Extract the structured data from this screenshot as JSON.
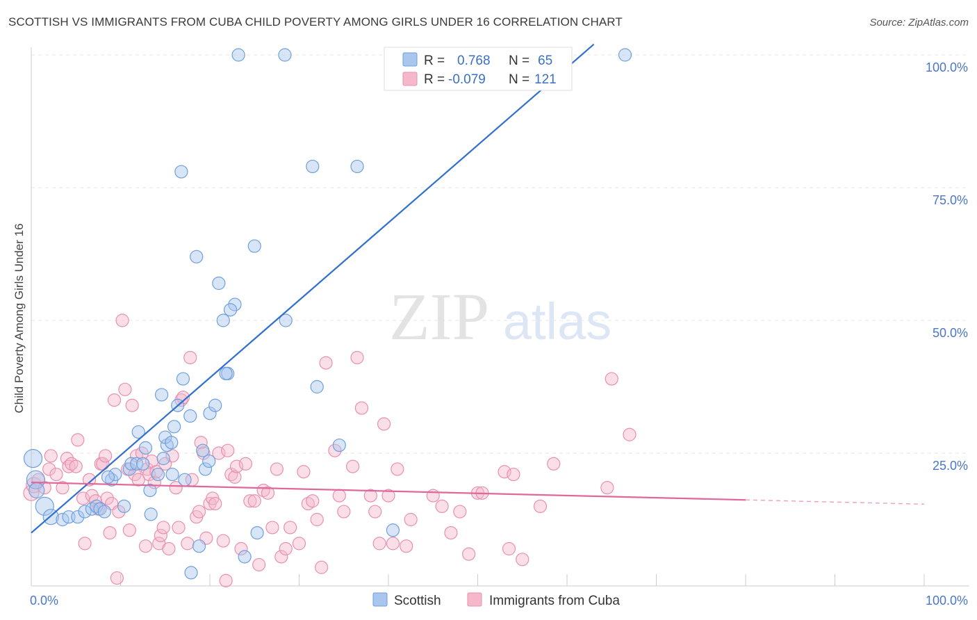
{
  "header": {
    "title": "SCOTTISH VS IMMIGRANTS FROM CUBA CHILD POVERTY AMONG GIRLS UNDER 16 CORRELATION CHART",
    "source": "Source: ZipAtlas.com"
  },
  "watermark": {
    "zip": "ZIP",
    "atlas": "atlas"
  },
  "colors": {
    "scottish_fill": "#a9c6ee",
    "scottish_stroke": "#6f9fdc",
    "scottish_line": "#2f6fcf",
    "cuba_fill": "#f5b8cb",
    "cuba_stroke": "#ea8fae",
    "cuba_line": "#e0679a",
    "tick_text": "#4a76c9"
  },
  "chart_data": {
    "type": "scatter",
    "title": "SCOTTISH VS IMMIGRANTS FROM CUBA CHILD POVERTY AMONG GIRLS UNDER 16 CORRELATION CHART",
    "xlabel": "",
    "ylabel": "Child Poverty Among Girls Under 16",
    "xlim": [
      0,
      100
    ],
    "ylim": [
      0,
      100
    ],
    "x_tick_labels": [
      "0.0%",
      "100.0%"
    ],
    "y_ticks": [
      {
        "value": 25,
        "label": "25.0%"
      },
      {
        "value": 50,
        "label": "50.0%"
      },
      {
        "value": 75,
        "label": "75.0%"
      },
      {
        "value": 100,
        "label": "100.0%"
      }
    ],
    "grid": true,
    "legend_position": "top-center",
    "legend": [
      {
        "r_label": "R =",
        "r_value": "0.768",
        "n_label": "N =",
        "n_value": "65"
      },
      {
        "r_label": "R =",
        "r_value": "-0.079",
        "n_label": "N =",
        "n_value": "121"
      }
    ],
    "series": [
      {
        "name": "Scottish",
        "trend": {
          "x0": 0,
          "y0": 10,
          "x1": 63,
          "y1": 102
        },
        "points": [
          [
            0.2,
            24,
            13
          ],
          [
            0.5,
            20,
            13
          ],
          [
            0.6,
            18,
            11
          ],
          [
            1.5,
            15,
            13
          ],
          [
            2.2,
            13,
            11
          ],
          [
            3.5,
            12.5,
            9
          ],
          [
            4.2,
            13,
            9
          ],
          [
            5.2,
            13,
            9
          ],
          [
            6.0,
            14,
            9
          ],
          [
            6.8,
            14.5,
            9
          ],
          [
            7.3,
            15,
            9
          ],
          [
            7.7,
            14.5,
            9
          ],
          [
            8.2,
            14,
            9
          ],
          [
            9.0,
            20,
            9
          ],
          [
            9.4,
            21,
            9
          ],
          [
            8.6,
            20.5,
            9
          ],
          [
            10.4,
            15,
            9
          ],
          [
            11.0,
            22,
            9
          ],
          [
            11.2,
            23,
            9
          ],
          [
            11.8,
            23,
            9
          ],
          [
            12.0,
            29,
            9
          ],
          [
            12.5,
            23,
            9
          ],
          [
            12.8,
            26,
            9
          ],
          [
            13.3,
            18,
            9
          ],
          [
            13.4,
            13.5,
            9
          ],
          [
            14.2,
            21,
            9
          ],
          [
            14.8,
            24,
            9
          ],
          [
            15.2,
            26.5,
            9
          ],
          [
            14.6,
            36,
            9
          ],
          [
            16.0,
            30,
            9
          ],
          [
            15.0,
            28,
            9
          ],
          [
            15.7,
            27,
            9
          ],
          [
            17.0,
            39,
            9
          ],
          [
            16.4,
            34,
            9
          ],
          [
            17.8,
            32,
            9
          ],
          [
            16.8,
            78,
            9
          ],
          [
            18.5,
            62,
            9
          ],
          [
            19.5,
            22,
            9
          ],
          [
            19.9,
            23.5,
            9
          ],
          [
            20.0,
            32.5,
            9
          ],
          [
            21.0,
            57,
            9
          ],
          [
            21.5,
            50,
            9
          ],
          [
            22.8,
            53,
            9
          ],
          [
            22.3,
            52,
            9
          ],
          [
            23.2,
            100,
            9
          ],
          [
            22.0,
            40,
            9
          ],
          [
            25.0,
            64,
            9
          ],
          [
            25.3,
            10,
            9
          ],
          [
            28.5,
            50,
            9
          ],
          [
            28.4,
            100,
            9
          ],
          [
            31.5,
            79,
            9
          ],
          [
            32.0,
            37.5,
            9
          ],
          [
            34.5,
            26.5,
            9
          ],
          [
            36.5,
            79,
            9
          ],
          [
            40.5,
            10.5,
            9
          ],
          [
            42.0,
            100,
            9
          ],
          [
            66.5,
            100,
            9
          ],
          [
            15.8,
            21,
            9
          ],
          [
            17.2,
            20,
            9
          ],
          [
            19.2,
            25.5,
            9
          ],
          [
            18.8,
            7.5,
            9
          ],
          [
            17.9,
            2.5,
            9
          ],
          [
            21.8,
            40,
            9
          ],
          [
            23.9,
            5.5,
            9
          ],
          [
            20.6,
            34,
            9
          ]
        ]
      },
      {
        "name": "Immigrants from Cuba",
        "trend": {
          "x0": 0,
          "y0": 19.5,
          "x1": 80,
          "y1": 16.2,
          "dash_to": {
            "x": 100,
            "y": 15.4
          }
        },
        "points": [
          [
            0.0,
            17.5,
            11
          ],
          [
            0.3,
            19,
            11
          ],
          [
            0.8,
            20,
            9
          ],
          [
            1.5,
            18.5,
            9
          ],
          [
            2.0,
            22,
            9
          ],
          [
            2.2,
            24.5,
            9
          ],
          [
            2.8,
            21,
            9
          ],
          [
            3.5,
            18.5,
            9
          ],
          [
            4.0,
            24,
            9
          ],
          [
            4.2,
            22.5,
            9
          ],
          [
            4.5,
            23,
            9
          ],
          [
            5.0,
            22.5,
            9
          ],
          [
            5.2,
            27.5,
            9
          ],
          [
            5.8,
            16.5,
            9
          ],
          [
            6.0,
            8,
            9
          ],
          [
            6.5,
            20,
            9
          ],
          [
            6.8,
            17,
            9
          ],
          [
            7.2,
            16,
            9
          ],
          [
            7.5,
            14.5,
            9
          ],
          [
            7.8,
            23,
            9
          ],
          [
            8.0,
            23,
            9
          ],
          [
            8.3,
            24.5,
            9
          ],
          [
            8.5,
            16.5,
            9
          ],
          [
            8.8,
            10,
            9
          ],
          [
            9.0,
            15.5,
            9
          ],
          [
            9.3,
            35,
            9
          ],
          [
            9.6,
            1.5,
            9
          ],
          [
            9.8,
            14,
            9
          ],
          [
            10.2,
            50,
            9
          ],
          [
            10.5,
            37,
            9
          ],
          [
            10.8,
            22,
            9
          ],
          [
            11.0,
            10.5,
            9
          ],
          [
            11.3,
            34,
            9
          ],
          [
            11.6,
            21,
            9
          ],
          [
            11.8,
            24.5,
            9
          ],
          [
            12.0,
            20,
            9
          ],
          [
            12.4,
            25,
            9
          ],
          [
            12.8,
            7.5,
            9
          ],
          [
            13.0,
            22,
            9
          ],
          [
            13.2,
            21,
            9
          ],
          [
            13.5,
            23.5,
            9
          ],
          [
            13.8,
            19.5,
            9
          ],
          [
            14.0,
            21.5,
            9
          ],
          [
            14.3,
            8,
            9
          ],
          [
            14.5,
            9.5,
            9
          ],
          [
            14.8,
            11,
            9
          ],
          [
            15.0,
            23,
            9
          ],
          [
            15.4,
            7,
            9
          ],
          [
            15.8,
            24.5,
            9
          ],
          [
            16.2,
            18.5,
            9
          ],
          [
            16.5,
            11,
            9
          ],
          [
            16.8,
            35,
            9
          ],
          [
            17.0,
            35.5,
            9
          ],
          [
            17.5,
            8,
            9
          ],
          [
            17.8,
            43,
            9
          ],
          [
            18.0,
            20,
            9
          ],
          [
            18.5,
            13,
            9
          ],
          [
            18.8,
            14,
            9
          ],
          [
            19.0,
            27,
            9
          ],
          [
            19.3,
            25,
            9
          ],
          [
            19.6,
            9,
            9
          ],
          [
            20.0,
            15.5,
            9
          ],
          [
            20.3,
            16.5,
            9
          ],
          [
            20.6,
            15.5,
            9
          ],
          [
            21.0,
            25,
            9
          ],
          [
            21.5,
            8.5,
            9
          ],
          [
            21.8,
            1,
            9
          ],
          [
            22.0,
            25.5,
            9
          ],
          [
            22.4,
            21,
            9
          ],
          [
            22.8,
            20.5,
            9
          ],
          [
            23.0,
            22.5,
            9
          ],
          [
            23.5,
            7,
            9
          ],
          [
            24.0,
            23,
            9
          ],
          [
            24.5,
            16,
            9
          ],
          [
            25.0,
            16,
            9
          ],
          [
            25.5,
            4,
            9
          ],
          [
            26.0,
            18,
            9
          ],
          [
            26.5,
            17.5,
            9
          ],
          [
            27.0,
            11,
            9
          ],
          [
            27.5,
            22,
            9
          ],
          [
            28.0,
            5.5,
            9
          ],
          [
            28.5,
            7,
            9
          ],
          [
            29.0,
            11,
            9
          ],
          [
            30.0,
            8,
            9
          ],
          [
            30.5,
            21.5,
            9
          ],
          [
            31.0,
            15.5,
            9
          ],
          [
            31.5,
            16,
            9
          ],
          [
            32.0,
            12.5,
            9
          ],
          [
            32.5,
            3.5,
            9
          ],
          [
            33.0,
            42,
            9
          ],
          [
            34.0,
            25.5,
            9
          ],
          [
            34.5,
            17,
            9
          ],
          [
            35.0,
            14,
            9
          ],
          [
            36.0,
            22.5,
            9
          ],
          [
            36.5,
            43,
            9
          ],
          [
            37.0,
            33.5,
            9
          ],
          [
            38.0,
            17,
            9
          ],
          [
            38.5,
            14,
            9
          ],
          [
            39.0,
            8,
            9
          ],
          [
            39.5,
            30.5,
            9
          ],
          [
            40.0,
            17,
            9
          ],
          [
            40.5,
            8,
            9
          ],
          [
            41.0,
            22,
            9
          ],
          [
            42.0,
            7.5,
            9
          ],
          [
            42.5,
            12.5,
            9
          ],
          [
            45.0,
            17,
            9
          ],
          [
            46.0,
            15,
            9
          ],
          [
            47.0,
            10,
            9
          ],
          [
            48.0,
            14,
            9
          ],
          [
            49.0,
            6,
            9
          ],
          [
            50.0,
            17.5,
            9
          ],
          [
            50.5,
            17.5,
            9
          ],
          [
            53.0,
            21.5,
            9
          ],
          [
            53.5,
            7,
            9
          ],
          [
            54.0,
            21,
            9
          ],
          [
            55.0,
            5,
            9
          ],
          [
            57.0,
            15,
            9
          ],
          [
            58.5,
            23,
            9
          ],
          [
            64.5,
            18.5,
            9
          ],
          [
            65.0,
            39,
            9
          ],
          [
            67.0,
            28.5,
            9
          ]
        ]
      }
    ]
  },
  "bottom_legend": [
    {
      "label": "Scottish"
    },
    {
      "label": "Immigrants from Cuba"
    }
  ]
}
